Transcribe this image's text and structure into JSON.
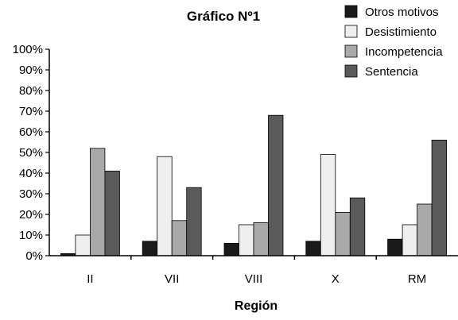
{
  "chart_data": {
    "type": "bar",
    "title": "Gráfico Nº1",
    "xlabel": "Región",
    "ylabel": "",
    "ylim": [
      0,
      100
    ],
    "y_ticks": [
      0,
      10,
      20,
      30,
      40,
      50,
      60,
      70,
      80,
      90,
      100
    ],
    "y_tick_suffix": "%",
    "grid": false,
    "legend_position": "top-right",
    "categories": [
      "II",
      "VII",
      "VIII",
      "X",
      "RM"
    ],
    "series": [
      {
        "name": "Otros motivos",
        "color": "#1a1a1a",
        "values": [
          1,
          7,
          6,
          7,
          8
        ]
      },
      {
        "name": "Desistimiento",
        "color": "#efefef",
        "values": [
          10,
          48,
          15,
          49,
          15
        ]
      },
      {
        "name": "Incompetencia",
        "color": "#a9a9a9",
        "values": [
          52,
          17,
          16,
          21,
          25
        ]
      },
      {
        "name": "Sentencia",
        "color": "#5a5a5a",
        "values": [
          41,
          33,
          68,
          28,
          56
        ]
      }
    ]
  }
}
